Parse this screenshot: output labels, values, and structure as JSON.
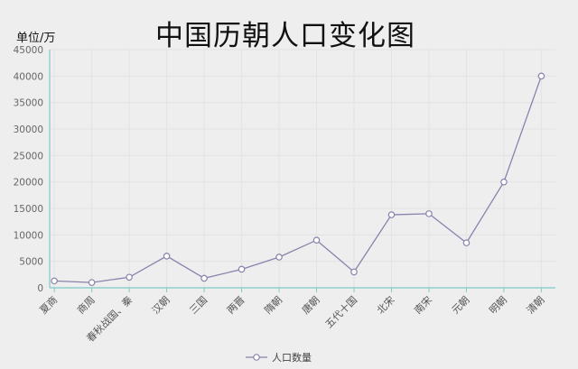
{
  "chart_data": {
    "type": "line",
    "title": "中国历朝人口变化图",
    "ylabel": "单位/万",
    "xlabel": "",
    "categories": [
      "夏商",
      "商周",
      "春秋战国、秦",
      "汉朝",
      "三国",
      "两晋",
      "隋朝",
      "唐朝",
      "五代十国",
      "北宋",
      "南宋",
      "元朝",
      "明朝",
      "清朝"
    ],
    "series": [
      {
        "name": "人口数量",
        "values": [
          1300,
          1000,
          2000,
          6000,
          1800,
          3500,
          5800,
          9000,
          3000,
          13800,
          14000,
          8500,
          20000,
          40000
        ]
      }
    ],
    "ylim": [
      0,
      45000
    ],
    "yticks": [
      0,
      5000,
      10000,
      15000,
      20000,
      25000,
      30000,
      35000,
      40000,
      45000
    ],
    "grid": true,
    "legend": "bottom-center",
    "colors": {
      "line": "#8a82ad",
      "marker_fill": "#ffffff",
      "axis": "#7fc8c4",
      "grid": "#e3e3e3",
      "tick_text": "#666666"
    }
  }
}
